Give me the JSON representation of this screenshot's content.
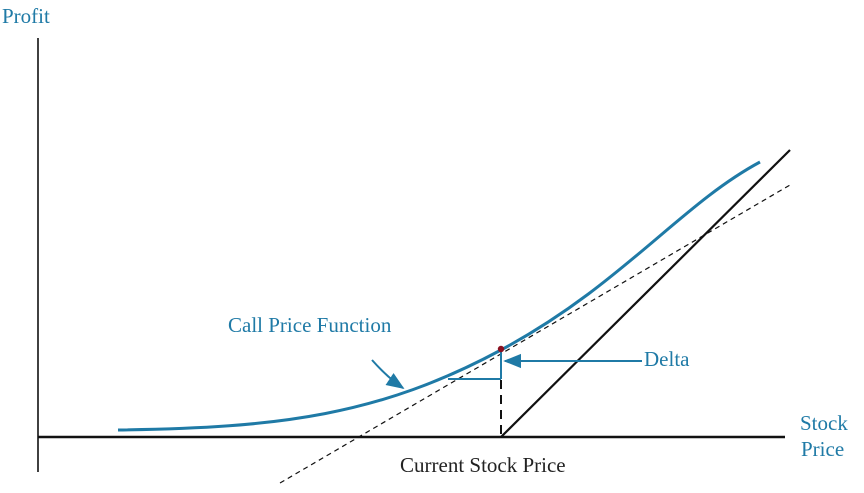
{
  "labels": {
    "y_axis": "Profit",
    "x_axis_line1": "Stock",
    "x_axis_line2": "Price",
    "current_price": "Current Stock Price",
    "call_function": "Call Price Function",
    "delta": "Delta"
  },
  "colors": {
    "curve": "#1f7aa6",
    "axes": "#111111",
    "tangent": "#111111",
    "point": "#8a1020"
  }
}
